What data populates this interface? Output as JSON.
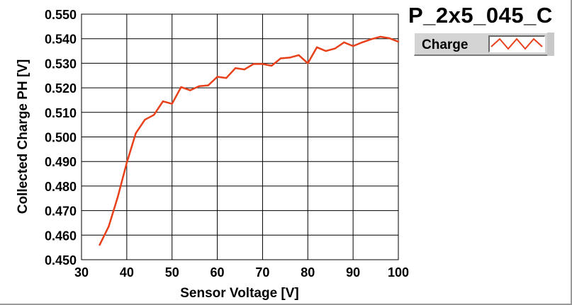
{
  "chart_data": {
    "type": "line",
    "title": "P_2x5_045_C",
    "xlabel": "Sensor Voltage [V]",
    "ylabel": "Collected Charge PH [V]",
    "xlim": [
      30,
      100
    ],
    "ylim": [
      0.45,
      0.55
    ],
    "xticks": [
      "30",
      "40",
      "50",
      "60",
      "70",
      "80",
      "90",
      "100"
    ],
    "yticks": [
      "0.450",
      "0.460",
      "0.470",
      "0.480",
      "0.490",
      "0.500",
      "0.510",
      "0.520",
      "0.530",
      "0.540",
      "0.550"
    ],
    "grid": true,
    "legend_position": "top-right",
    "series": [
      {
        "name": "Charge",
        "color": "#e8401a",
        "x": [
          34,
          36,
          38,
          40,
          42,
          44,
          46,
          48,
          50,
          52,
          54,
          56,
          58,
          60,
          62,
          64,
          66,
          68,
          70,
          72,
          74,
          76,
          78,
          80,
          82,
          84,
          86,
          88,
          90,
          92,
          94,
          96,
          98,
          100
        ],
        "y": [
          0.456,
          0.4635,
          0.4755,
          0.4895,
          0.5015,
          0.507,
          0.509,
          0.5145,
          0.5135,
          0.5203,
          0.519,
          0.5207,
          0.521,
          0.5245,
          0.524,
          0.528,
          0.5275,
          0.5297,
          0.5297,
          0.529,
          0.532,
          0.5323,
          0.5333,
          0.53,
          0.5365,
          0.535,
          0.536,
          0.5385,
          0.537,
          0.5385,
          0.5398,
          0.5408,
          0.5402,
          0.5388
        ]
      }
    ]
  }
}
